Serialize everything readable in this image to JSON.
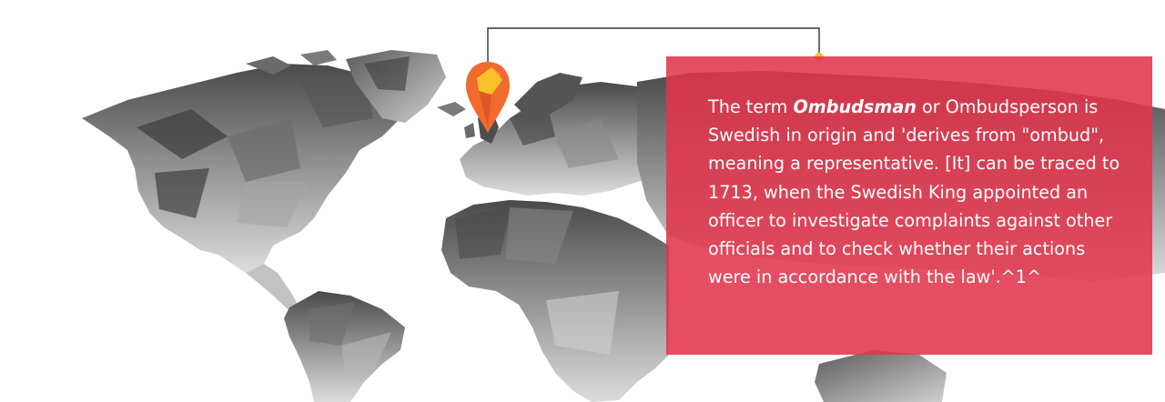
{
  "map": {
    "icon": "world-map-icon",
    "pin_icon": "location-pin-icon",
    "pin_color": "#f26a2e",
    "pin_highlight": "#f8c12a",
    "land_color": "#9a9a9a"
  },
  "info_card": {
    "background_color": "#e1354c",
    "text_before_term": "The term ",
    "term": "Ombudsman",
    "text_after_term": " or Ombudsperson is Swedish in origin and 'derives from \"ombud\", meaning a representative. [It] can be traced to 1713, when the Swedish King appointed an officer to investigate complaints against other officials and to check whether their actions were in accordance with the law'.^1^"
  },
  "connector": {
    "line_color": "#333333",
    "dot_color": "#f5c518"
  }
}
